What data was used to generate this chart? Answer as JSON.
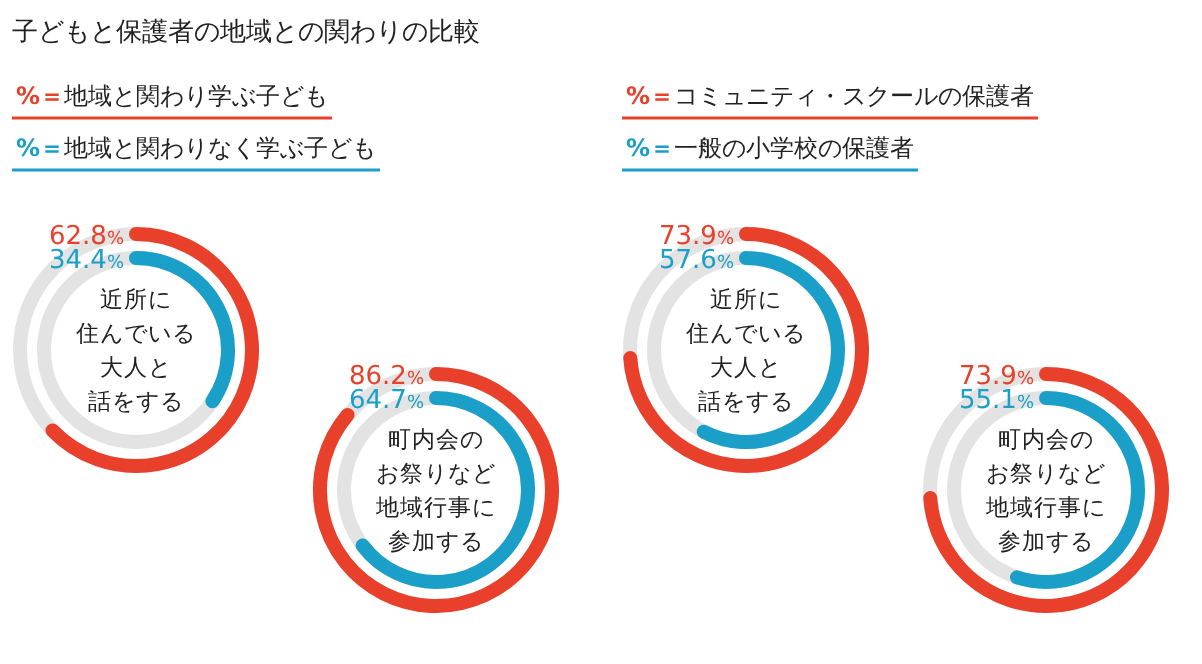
{
  "chart_data": [
    {
      "type": "other",
      "title": "子どもと保護者の地域との関わりの比較",
      "categories": [
        "近所に住んでいる大人と話をする",
        "町内会のお祭りなど地域行事に参加する"
      ],
      "series": [
        {
          "name": "%＝地域と関わり学ぶ子ども",
          "color": "#e8402a",
          "values": [
            62.8,
            86.2
          ],
          "value_labels": [
            "62.8%",
            "86.2%"
          ]
        },
        {
          "name": "%＝地域と関わりなく学ぶ子ども",
          "color": "#1a9fc8",
          "values": [
            34.4,
            64.7
          ],
          "value_labels": [
            "34.4%",
            "64.7%"
          ]
        }
      ]
    },
    {
      "type": "other",
      "categories": [
        "近所に住んでいる大人と話をする",
        "町内会のお祭りなど地域行事に参加する"
      ],
      "series": [
        {
          "name": "%＝コミュニティ・スクールの保護者",
          "color": "#e8402a",
          "values": [
            73.9,
            73.9
          ],
          "value_labels": [
            "73.9%",
            "73.9%"
          ]
        },
        {
          "name": "%＝一般の小学校の保護者",
          "color": "#1a9fc8",
          "values": [
            57.6,
            55.1
          ],
          "value_labels": [
            "57.6%",
            "55.1%"
          ]
        }
      ]
    }
  ]
}
